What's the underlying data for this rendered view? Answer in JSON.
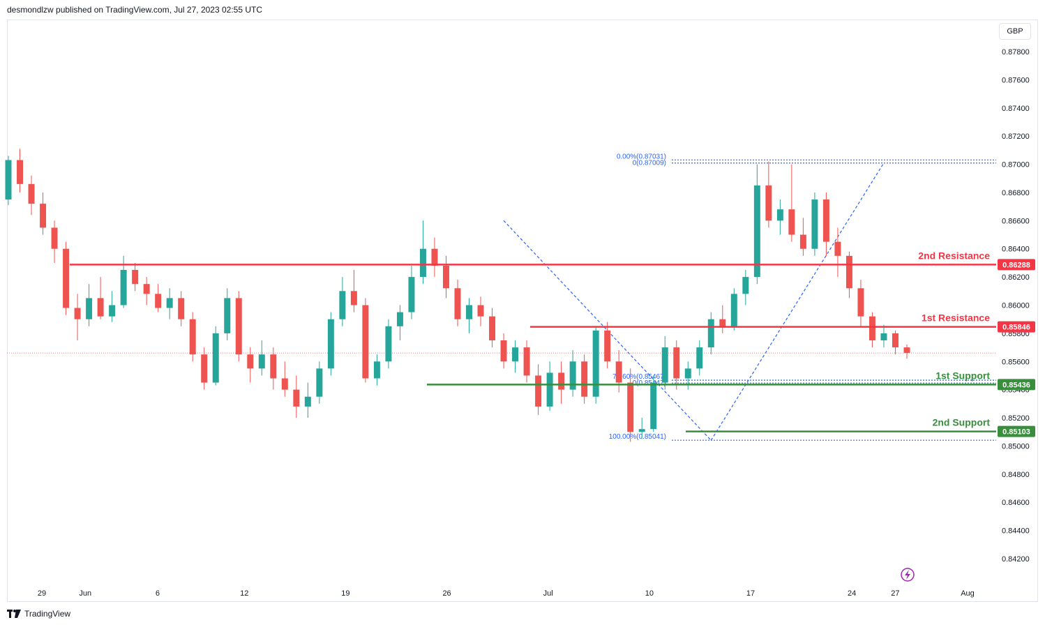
{
  "header": {
    "text": "desmondlzw published on TradingView.com, Jul 27, 2023 02:55 UTC"
  },
  "currency": "GBP",
  "footer": {
    "brand": "TradingView"
  },
  "colors": {
    "up": "#26a69a",
    "down": "#ef5350",
    "resistance": "#f23645",
    "support": "#388e3c",
    "fib": "#2962ff",
    "grid": "#f0f3fa",
    "current": "#ef5350"
  },
  "chart_data": {
    "type": "candlestick",
    "y_ticks": [
      0.878,
      0.876,
      0.874,
      0.872,
      0.87,
      0.868,
      0.866,
      0.864,
      0.862,
      0.86,
      0.858,
      0.856,
      0.854,
      0.852,
      0.85,
      0.848,
      0.846,
      0.844,
      0.842
    ],
    "y_tick_labels": [
      "0.87800",
      "0.87600",
      "0.87400",
      "0.87200",
      "0.87000",
      "0.86800",
      "0.86600",
      "0.86400",
      "0.86200",
      "0.86000",
      "0.85800",
      "0.85600",
      "0.85400",
      "0.85200",
      "0.85000",
      "0.84800",
      "0.84600",
      "0.84400",
      "0.84200"
    ],
    "x_ticks": [
      {
        "label": "29",
        "date": "2023-05-29"
      },
      {
        "label": "Jun",
        "date": "2023-06-01"
      },
      {
        "label": "6",
        "date": "2023-06-06"
      },
      {
        "label": "12",
        "date": "2023-06-12"
      },
      {
        "label": "19",
        "date": "2023-06-19"
      },
      {
        "label": "26",
        "date": "2023-06-26"
      },
      {
        "label": "Jul",
        "date": "2023-07-03"
      },
      {
        "label": "10",
        "date": "2023-07-10"
      },
      {
        "label": "17",
        "date": "2023-07-17"
      },
      {
        "label": "24",
        "date": "2023-07-24"
      },
      {
        "label": "27",
        "date": "2023-07-27"
      },
      {
        "label": "Aug",
        "date": "2023-08-01"
      }
    ],
    "candles": [
      [
        0.8675,
        0.8706,
        0.8671,
        0.8703
      ],
      [
        0.8703,
        0.8711,
        0.868,
        0.8686
      ],
      [
        0.8686,
        0.8692,
        0.8664,
        0.8672
      ],
      [
        0.8672,
        0.868,
        0.865,
        0.8655
      ],
      [
        0.8655,
        0.866,
        0.863,
        0.864
      ],
      [
        0.864,
        0.8645,
        0.8593,
        0.8598
      ],
      [
        0.8598,
        0.8608,
        0.8575,
        0.859
      ],
      [
        0.859,
        0.8615,
        0.8585,
        0.8605
      ],
      [
        0.8605,
        0.862,
        0.859,
        0.8592
      ],
      [
        0.8592,
        0.861,
        0.8588,
        0.86
      ],
      [
        0.86,
        0.8635,
        0.8598,
        0.8625
      ],
      [
        0.8625,
        0.863,
        0.861,
        0.8615
      ],
      [
        0.8615,
        0.862,
        0.86,
        0.8608
      ],
      [
        0.8608,
        0.8615,
        0.8595,
        0.8598
      ],
      [
        0.8598,
        0.8612,
        0.859,
        0.8605
      ],
      [
        0.8605,
        0.861,
        0.8585,
        0.859
      ],
      [
        0.859,
        0.8595,
        0.856,
        0.8565
      ],
      [
        0.8565,
        0.857,
        0.854,
        0.8545
      ],
      [
        0.8545,
        0.8585,
        0.8543,
        0.858
      ],
      [
        0.858,
        0.8612,
        0.8575,
        0.8605
      ],
      [
        0.8605,
        0.861,
        0.856,
        0.8565
      ],
      [
        0.8565,
        0.857,
        0.8545,
        0.8555
      ],
      [
        0.8555,
        0.8575,
        0.855,
        0.8565
      ],
      [
        0.8565,
        0.857,
        0.854,
        0.8548
      ],
      [
        0.8548,
        0.856,
        0.8535,
        0.854
      ],
      [
        0.854,
        0.855,
        0.852,
        0.8528
      ],
      [
        0.8528,
        0.8545,
        0.852,
        0.8535
      ],
      [
        0.8535,
        0.856,
        0.853,
        0.8555
      ],
      [
        0.8555,
        0.8595,
        0.855,
        0.859
      ],
      [
        0.859,
        0.862,
        0.8585,
        0.861
      ],
      [
        0.861,
        0.8625,
        0.8595,
        0.86
      ],
      [
        0.86,
        0.8605,
        0.8545,
        0.8548
      ],
      [
        0.8548,
        0.8565,
        0.8543,
        0.856
      ],
      [
        0.856,
        0.859,
        0.8555,
        0.8585
      ],
      [
        0.8585,
        0.86,
        0.8575,
        0.8595
      ],
      [
        0.8595,
        0.8628,
        0.859,
        0.862
      ],
      [
        0.862,
        0.866,
        0.8615,
        0.864
      ],
      [
        0.864,
        0.8648,
        0.862,
        0.8628
      ],
      [
        0.8628,
        0.8635,
        0.8605,
        0.8612
      ],
      [
        0.8612,
        0.8618,
        0.8585,
        0.859
      ],
      [
        0.859,
        0.8605,
        0.858,
        0.86
      ],
      [
        0.86,
        0.8606,
        0.8585,
        0.8592
      ],
      [
        0.8592,
        0.8598,
        0.857,
        0.8575
      ],
      [
        0.8575,
        0.858,
        0.8555,
        0.856
      ],
      [
        0.856,
        0.8575,
        0.8552,
        0.857
      ],
      [
        0.857,
        0.8575,
        0.8545,
        0.855
      ],
      [
        0.855,
        0.8558,
        0.8522,
        0.8528
      ],
      [
        0.8528,
        0.856,
        0.8525,
        0.8552
      ],
      [
        0.8552,
        0.856,
        0.853,
        0.854
      ],
      [
        0.854,
        0.8568,
        0.8535,
        0.856
      ],
      [
        0.856,
        0.8565,
        0.853,
        0.8535
      ],
      [
        0.8535,
        0.8585,
        0.853,
        0.8582
      ],
      [
        0.8582,
        0.8588,
        0.8555,
        0.856
      ],
      [
        0.856,
        0.8568,
        0.8538,
        0.8545
      ],
      [
        0.8545,
        0.8555,
        0.8503,
        0.851
      ],
      [
        0.851,
        0.852,
        0.8505,
        0.8512
      ],
      [
        0.8512,
        0.855,
        0.851,
        0.8545
      ],
      [
        0.8545,
        0.8578,
        0.854,
        0.857
      ],
      [
        0.857,
        0.8575,
        0.854,
        0.8548
      ],
      [
        0.8548,
        0.856,
        0.854,
        0.8555
      ],
      [
        0.8555,
        0.8575,
        0.855,
        0.857
      ],
      [
        0.857,
        0.8595,
        0.8565,
        0.859
      ],
      [
        0.859,
        0.86,
        0.858,
        0.8585
      ],
      [
        0.8585,
        0.8612,
        0.8582,
        0.8608
      ],
      [
        0.8608,
        0.8625,
        0.86,
        0.862
      ],
      [
        0.862,
        0.87,
        0.8615,
        0.8685
      ],
      [
        0.8685,
        0.8702,
        0.8655,
        0.866
      ],
      [
        0.866,
        0.8675,
        0.865,
        0.8668
      ],
      [
        0.8668,
        0.87,
        0.8645,
        0.865
      ],
      [
        0.865,
        0.8662,
        0.8635,
        0.864
      ],
      [
        0.864,
        0.868,
        0.8635,
        0.8675
      ],
      [
        0.8675,
        0.868,
        0.8635,
        0.8645
      ],
      [
        0.8645,
        0.8655,
        0.862,
        0.8635
      ],
      [
        0.8635,
        0.8638,
        0.8605,
        0.8612
      ],
      [
        0.8612,
        0.8618,
        0.8585,
        0.8592
      ],
      [
        0.8592,
        0.8595,
        0.857,
        0.8575
      ],
      [
        0.8575,
        0.8586,
        0.857,
        0.858
      ],
      [
        0.858,
        0.8582,
        0.8565,
        0.857
      ],
      [
        0.857,
        0.8572,
        0.8562,
        0.8566
      ]
    ],
    "current_price": 0.8566,
    "levels": [
      {
        "name": "2nd Resistance",
        "price": 0.86288,
        "label": "0.86288",
        "kind": "resistance"
      },
      {
        "name": "1st Resistance",
        "price": 0.85846,
        "label": "0.85846",
        "kind": "resistance"
      },
      {
        "name": "1st Support",
        "price": 0.85436,
        "label": "0.85436",
        "kind": "support"
      },
      {
        "name": "2nd Support",
        "price": 0.85103,
        "label": "0.85103",
        "kind": "support"
      }
    ],
    "fib": {
      "labels": [
        "0.00%(0.87031)",
        "0(0.87009)",
        "78.60%(0.85467)",
        "0(0.85447)",
        "100.00%(0.85041)"
      ],
      "prices": [
        0.87031,
        0.87009,
        0.85467,
        0.85447,
        0.85041
      ]
    },
    "trendlines": [
      {
        "from_index": 43,
        "from_price": 0.866,
        "to_index": 61,
        "to_price": 0.8504
      },
      {
        "from_index": 61,
        "from_price": 0.8504,
        "to_index": 76,
        "to_price": 0.8701
      }
    ]
  }
}
